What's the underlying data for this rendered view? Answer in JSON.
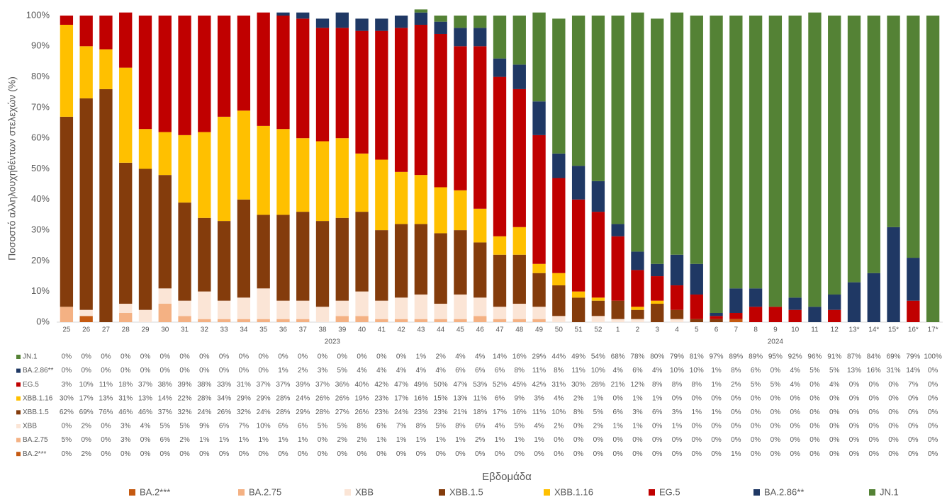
{
  "chart_data": {
    "type": "stacked_bar",
    "x_label": "Εβδομάδα",
    "y_label": "Ποσοστό αλληλουχηθέντων στελεχών (%)",
    "x_groups": [
      "2023",
      "2024"
    ],
    "categories": [
      "25",
      "26",
      "27",
      "28",
      "29",
      "30",
      "31",
      "32",
      "33",
      "34",
      "35",
      "36",
      "37",
      "38",
      "39",
      "40",
      "41",
      "42",
      "43",
      "44",
      "45",
      "46",
      "47",
      "48",
      "49",
      "50",
      "51",
      "52",
      "1",
      "2",
      "3",
      "4",
      "5",
      "6",
      "7",
      "8",
      "9",
      "10",
      "11",
      "12",
      "13*",
      "14*",
      "15*",
      "16*",
      "17*"
    ],
    "ylim": [
      0,
      100
    ],
    "yticks": [
      {
        "value": 0,
        "label": "0%"
      },
      {
        "value": 10,
        "label": "10%"
      },
      {
        "value": 20,
        "label": "20%"
      },
      {
        "value": 30,
        "label": "30%"
      },
      {
        "value": 40,
        "label": "40%"
      },
      {
        "value": 50,
        "label": "50%"
      },
      {
        "value": 60,
        "label": "60%"
      },
      {
        "value": 70,
        "label": "70%"
      },
      {
        "value": 80,
        "label": "80%"
      },
      {
        "value": 90,
        "label": "90%"
      },
      {
        "value": 100,
        "label": "100%"
      }
    ],
    "series": [
      {
        "name": "BA.2***",
        "color": "#c55a11",
        "values": [
          0,
          2,
          0,
          0,
          0,
          0,
          0,
          0,
          0,
          0,
          0,
          0,
          0,
          0,
          0,
          0,
          0,
          0,
          0,
          0,
          0,
          0,
          0,
          0,
          0,
          0,
          0,
          0,
          0,
          0,
          0,
          0,
          0,
          0,
          1,
          0,
          0,
          0,
          0,
          0,
          0,
          0,
          0,
          0,
          0
        ],
        "value_labels": [
          "0%",
          "2%",
          "0%",
          "0%",
          "0%",
          "0%",
          "0%",
          "0%",
          "0%",
          "0%",
          "0%",
          "0%",
          "0%",
          "0%",
          "0%",
          "0%",
          "0%",
          "0%",
          "0%",
          "0%",
          "0%",
          "0%",
          "0%",
          "0%",
          "0%",
          "0%",
          "0%",
          "0%",
          "0%",
          "0%",
          "0%",
          "0%",
          "0%",
          "0%",
          "1%",
          "0%",
          "0%",
          "0%",
          "0%",
          "0%",
          "0%",
          "0%",
          "0%",
          "0%",
          "0%"
        ]
      },
      {
        "name": "BA.2.75",
        "color": "#f4b183",
        "values": [
          5,
          0,
          0,
          3,
          0,
          6,
          2,
          1,
          1,
          1,
          1,
          1,
          1,
          0,
          2,
          2,
          1,
          1,
          1,
          1,
          1,
          2,
          1,
          1,
          1,
          0,
          0,
          0,
          0,
          0,
          0,
          0,
          0,
          0,
          0,
          0,
          0,
          0,
          0,
          0,
          0,
          0,
          0,
          0,
          0
        ],
        "value_labels": [
          "5%",
          "0%",
          "0%",
          "3%",
          "0%",
          "6%",
          "2%",
          "1%",
          "1%",
          "1%",
          "1%",
          "1%",
          "1%",
          "0%",
          "2%",
          "2%",
          "1%",
          "1%",
          "1%",
          "1%",
          "1%",
          "2%",
          "1%",
          "1%",
          "1%",
          "0%",
          "0%",
          "0%",
          "0%",
          "0%",
          "0%",
          "0%",
          "0%",
          "0%",
          "0%",
          "0%",
          "0%",
          "0%",
          "0%",
          "0%",
          "0%",
          "0%",
          "0%",
          "0%",
          "0%"
        ]
      },
      {
        "name": "XBB",
        "color": "#fbe5d6",
        "values": [
          0,
          2,
          0,
          3,
          4,
          5,
          5,
          9,
          6,
          7,
          10,
          6,
          6,
          5,
          5,
          8,
          6,
          7,
          8,
          5,
          8,
          6,
          4,
          5,
          4,
          2,
          0,
          2,
          1,
          1,
          0,
          1,
          0,
          0,
          0,
          0,
          0,
          0,
          0,
          0,
          0,
          0,
          0,
          0,
          0
        ],
        "value_labels": [
          "0%",
          "2%",
          "0%",
          "3%",
          "4%",
          "5%",
          "5%",
          "9%",
          "6%",
          "7%",
          "10%",
          "6%",
          "6%",
          "5%",
          "5%",
          "8%",
          "6%",
          "7%",
          "8%",
          "5%",
          "8%",
          "6%",
          "4%",
          "5%",
          "4%",
          "2%",
          "0%",
          "2%",
          "1%",
          "1%",
          "0%",
          "1%",
          "0%",
          "0%",
          "0%",
          "0%",
          "0%",
          "0%",
          "0%",
          "0%",
          "0%",
          "0%",
          "0%",
          "0%",
          "0%"
        ]
      },
      {
        "name": "XBB.1.5",
        "color": "#843c0c",
        "values": [
          62,
          69,
          76,
          46,
          46,
          37,
          32,
          24,
          26,
          32,
          24,
          28,
          29,
          28,
          27,
          26,
          23,
          24,
          23,
          23,
          21,
          18,
          17,
          16,
          11,
          10,
          8,
          5,
          6,
          3,
          6,
          3,
          1,
          1,
          0,
          0,
          0,
          0,
          0,
          0,
          0,
          0,
          0,
          0,
          0
        ],
        "value_labels": [
          "62%",
          "69%",
          "76%",
          "46%",
          "46%",
          "37%",
          "32%",
          "24%",
          "26%",
          "32%",
          "24%",
          "28%",
          "29%",
          "28%",
          "27%",
          "26%",
          "23%",
          "24%",
          "23%",
          "23%",
          "21%",
          "18%",
          "17%",
          "16%",
          "11%",
          "10%",
          "8%",
          "5%",
          "6%",
          "3%",
          "6%",
          "3%",
          "1%",
          "1%",
          "0%",
          "0%",
          "0%",
          "0%",
          "0%",
          "0%",
          "0%",
          "0%",
          "0%",
          "0%",
          "0%"
        ]
      },
      {
        "name": "XBB.1.16",
        "color": "#ffc000",
        "values": [
          30,
          17,
          13,
          31,
          13,
          14,
          22,
          28,
          34,
          29,
          29,
          28,
          24,
          26,
          26,
          19,
          23,
          17,
          16,
          15,
          13,
          11,
          6,
          9,
          3,
          4,
          2,
          1,
          0,
          1,
          1,
          0,
          0,
          0,
          0,
          0,
          0,
          0,
          0,
          0,
          0,
          0,
          0,
          0,
          0
        ],
        "value_labels": [
          "30%",
          "17%",
          "13%",
          "31%",
          "13%",
          "14%",
          "22%",
          "28%",
          "34%",
          "29%",
          "29%",
          "28%",
          "24%",
          "26%",
          "26%",
          "19%",
          "23%",
          "17%",
          "16%",
          "15%",
          "13%",
          "11%",
          "6%",
          "9%",
          "3%",
          "4%",
          "2%",
          "1%",
          "0%",
          "1%",
          "1%",
          "0%",
          "0%",
          "0%",
          "0%",
          "0%",
          "0%",
          "0%",
          "0%",
          "0%",
          "0%",
          "0%",
          "0%",
          "0%",
          "0%"
        ]
      },
      {
        "name": "EG.5",
        "color": "#c00000",
        "values": [
          3,
          10,
          11,
          18,
          37,
          38,
          39,
          38,
          33,
          31,
          37,
          37,
          39,
          37,
          36,
          40,
          42,
          47,
          49,
          50,
          47,
          53,
          52,
          45,
          42,
          31,
          30,
          28,
          21,
          12,
          8,
          8,
          8,
          1,
          2,
          5,
          5,
          4,
          0,
          4,
          0,
          0,
          0,
          7,
          0
        ],
        "value_labels": [
          "3%",
          "10%",
          "11%",
          "18%",
          "37%",
          "38%",
          "39%",
          "38%",
          "33%",
          "31%",
          "37%",
          "37%",
          "39%",
          "37%",
          "36%",
          "40%",
          "42%",
          "47%",
          "49%",
          "50%",
          "47%",
          "53%",
          "52%",
          "45%",
          "42%",
          "31%",
          "30%",
          "28%",
          "21%",
          "12%",
          "8%",
          "8%",
          "8%",
          "1%",
          "2%",
          "5%",
          "5%",
          "4%",
          "0%",
          "4%",
          "0%",
          "0%",
          "0%",
          "7%",
          "0%"
        ]
      },
      {
        "name": "BA.2.86**",
        "color": "#1f3864",
        "values": [
          0,
          0,
          0,
          0,
          0,
          0,
          0,
          0,
          0,
          0,
          0,
          1,
          2,
          3,
          5,
          4,
          4,
          4,
          4,
          4,
          6,
          6,
          6,
          8,
          11,
          8,
          11,
          10,
          4,
          6,
          4,
          10,
          10,
          1,
          8,
          6,
          0,
          4,
          5,
          5,
          13,
          16,
          31,
          14,
          0
        ],
        "value_labels": [
          "0%",
          "0%",
          "0%",
          "0%",
          "0%",
          "0%",
          "0%",
          "0%",
          "0%",
          "0%",
          "0%",
          "1%",
          "2%",
          "3%",
          "5%",
          "4%",
          "4%",
          "4%",
          "4%",
          "4%",
          "6%",
          "6%",
          "6%",
          "8%",
          "11%",
          "8%",
          "11%",
          "10%",
          "4%",
          "6%",
          "4%",
          "10%",
          "10%",
          "1%",
          "8%",
          "6%",
          "0%",
          "4%",
          "5%",
          "5%",
          "13%",
          "16%",
          "31%",
          "14%",
          "0%"
        ]
      },
      {
        "name": "JN.1",
        "color": "#548235",
        "values": [
          0,
          0,
          0,
          0,
          0,
          0,
          0,
          0,
          0,
          0,
          0,
          0,
          0,
          0,
          0,
          0,
          0,
          0,
          1,
          2,
          4,
          4,
          14,
          16,
          29,
          44,
          49,
          54,
          68,
          78,
          80,
          79,
          81,
          97,
          89,
          89,
          95,
          92,
          96,
          91,
          87,
          84,
          69,
          79,
          100
        ],
        "value_labels": [
          "0%",
          "0%",
          "0%",
          "0%",
          "0%",
          "0%",
          "0%",
          "0%",
          "0%",
          "0%",
          "0%",
          "0%",
          "0%",
          "0%",
          "0%",
          "0%",
          "0%",
          "0%",
          "1%",
          "2%",
          "4%",
          "4%",
          "14%",
          "16%",
          "29%",
          "44%",
          "49%",
          "54%",
          "68%",
          "78%",
          "80%",
          "79%",
          "81%",
          "97%",
          "89%",
          "89%",
          "95%",
          "92%",
          "96%",
          "91%",
          "87%",
          "84%",
          "69%",
          "79%",
          "100%"
        ]
      }
    ]
  }
}
